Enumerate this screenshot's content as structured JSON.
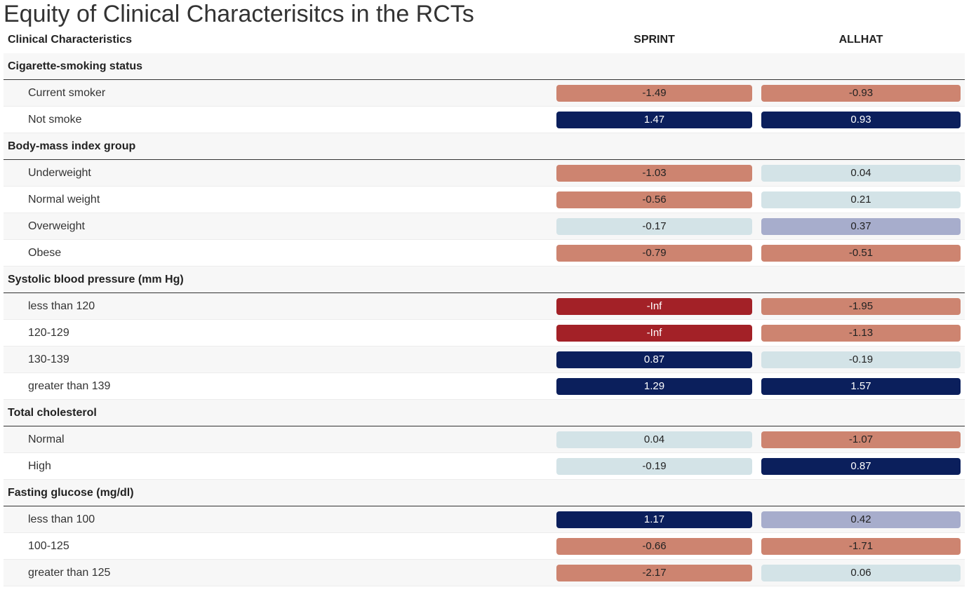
{
  "title": "Equity of Clinical Characterisitcs in the RCTs",
  "header": {
    "label": "Clinical Characteristics",
    "columns": [
      "SPRINT",
      "ALLHAT"
    ]
  },
  "colors": {
    "strong_negative": "#a32127",
    "negative": "#cd8470",
    "neutral": "#d3e3e7",
    "mild_positive": "#a7adcc",
    "positive": "#0b1f5c",
    "light_text": "#ffffff",
    "dark_text": "#222222"
  },
  "groups": [
    {
      "label": "Cigarette-smoking status",
      "rows": [
        {
          "label": "Current smoker",
          "values": [
            "-1.49",
            "-0.93"
          ],
          "tones": [
            "negative",
            "negative"
          ]
        },
        {
          "label": "Not smoke",
          "values": [
            "1.47",
            "0.93"
          ],
          "tones": [
            "positive",
            "positive"
          ]
        }
      ]
    },
    {
      "label": "Body-mass index group",
      "rows": [
        {
          "label": "Underweight",
          "values": [
            "-1.03",
            "0.04"
          ],
          "tones": [
            "negative",
            "neutral"
          ]
        },
        {
          "label": "Normal weight",
          "values": [
            "-0.56",
            "0.21"
          ],
          "tones": [
            "negative",
            "neutral"
          ]
        },
        {
          "label": "Overweight",
          "values": [
            "-0.17",
            "0.37"
          ],
          "tones": [
            "neutral",
            "mild_positive"
          ]
        },
        {
          "label": "Obese",
          "values": [
            "-0.79",
            "-0.51"
          ],
          "tones": [
            "negative",
            "negative"
          ]
        }
      ]
    },
    {
      "label": "Systolic blood pressure (mm Hg)",
      "rows": [
        {
          "label": "less than 120",
          "values": [
            "-Inf",
            "-1.95"
          ],
          "tones": [
            "strong_negative",
            "negative"
          ]
        },
        {
          "label": "120-129",
          "values": [
            "-Inf",
            "-1.13"
          ],
          "tones": [
            "strong_negative",
            "negative"
          ]
        },
        {
          "label": "130-139",
          "values": [
            "0.87",
            "-0.19"
          ],
          "tones": [
            "positive",
            "neutral"
          ]
        },
        {
          "label": "greater than 139",
          "values": [
            "1.29",
            "1.57"
          ],
          "tones": [
            "positive",
            "positive"
          ]
        }
      ]
    },
    {
      "label": "Total cholesterol",
      "rows": [
        {
          "label": "Normal",
          "values": [
            "0.04",
            "-1.07"
          ],
          "tones": [
            "neutral",
            "negative"
          ]
        },
        {
          "label": "High",
          "values": [
            "-0.19",
            "0.87"
          ],
          "tones": [
            "neutral",
            "positive"
          ]
        }
      ]
    },
    {
      "label": "Fasting glucose (mg/dl)",
      "rows": [
        {
          "label": "less than 100",
          "values": [
            "1.17",
            "0.42"
          ],
          "tones": [
            "positive",
            "mild_positive"
          ]
        },
        {
          "label": "100-125",
          "values": [
            "-0.66",
            "-1.71"
          ],
          "tones": [
            "negative",
            "negative"
          ]
        },
        {
          "label": "greater than 125",
          "values": [
            "-2.17",
            "0.06"
          ],
          "tones": [
            "negative",
            "neutral"
          ]
        }
      ]
    }
  ]
}
